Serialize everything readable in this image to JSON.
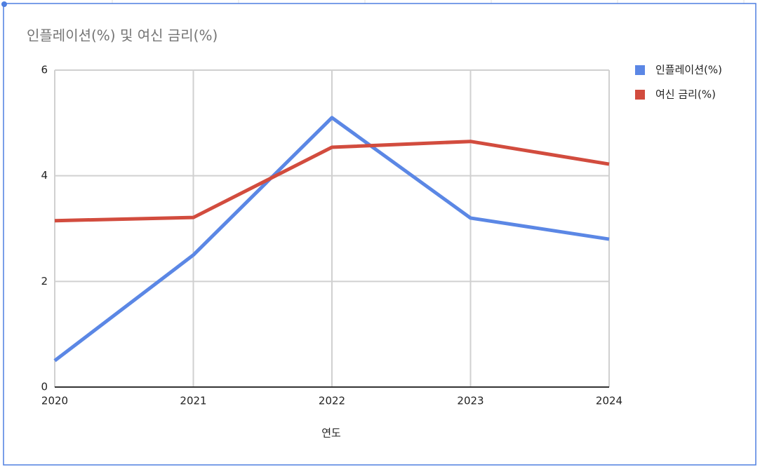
{
  "chart_data": {
    "type": "line",
    "title": "인플레이션(%) 및 여신 금리(%)",
    "x_label": "연도",
    "categories": [
      "2020",
      "2021",
      "2022",
      "2023",
      "2024"
    ],
    "series": [
      {
        "name": "인플레이션(%)",
        "color": "#5b87e5",
        "values": [
          0.5,
          2.5,
          5.1,
          3.2,
          2.8
        ]
      },
      {
        "name": "여신 금리(%)",
        "color": "#d24c3e",
        "values": [
          3.15,
          3.21,
          4.54,
          4.65,
          4.22
        ]
      }
    ],
    "ylim": [
      0,
      6
    ],
    "yticks": [
      0,
      2,
      4,
      6
    ],
    "grid": true,
    "legend": "right"
  }
}
